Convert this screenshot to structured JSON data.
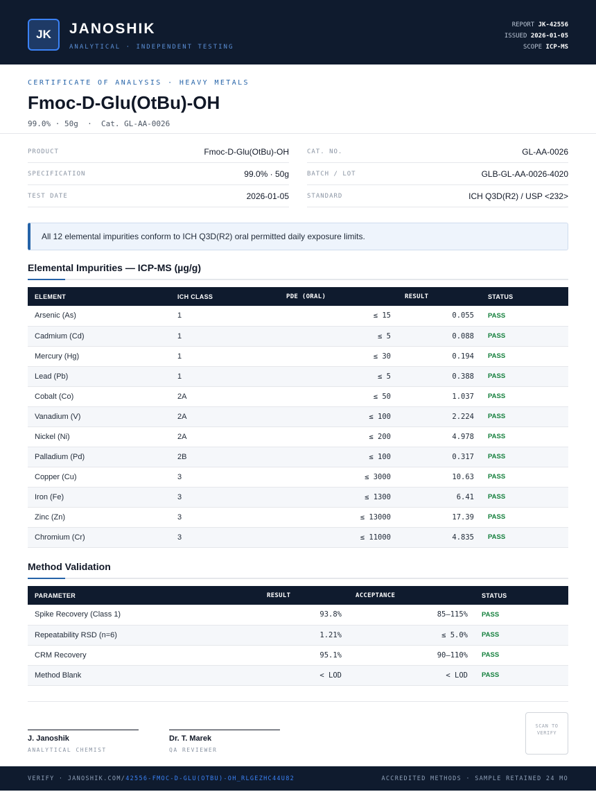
{
  "header": {
    "initials": "JK",
    "brand": "JANOSHIK",
    "tagline": "ANALYTICAL · INDEPENDENT TESTING",
    "meta": [
      {
        "label": "REPORT",
        "value": "JK-42556"
      },
      {
        "label": "ISSUED",
        "value": "2026-01-05"
      },
      {
        "label": "SCOPE",
        "value": "ICP-MS"
      }
    ]
  },
  "title_block": {
    "kicker": "CERTIFICATE OF ANALYSIS · HEAVY METALS",
    "title": "Fmoc-D-Glu(OtBu)-OH",
    "subtitle": "99.0% · 50g  ·  Cat. GL-AA-0026"
  },
  "info": {
    "left": [
      {
        "label": "PRODUCT",
        "value": "Fmoc-D-Glu(OtBu)-OH"
      },
      {
        "label": "SPECIFICATION",
        "value": "99.0% · 50g"
      },
      {
        "label": "TEST DATE",
        "value": "2026-01-05"
      }
    ],
    "right": [
      {
        "label": "CAT. NO.",
        "value": "GL-AA-0026"
      },
      {
        "label": "BATCH / LOT",
        "value": "GLB-GL-AA-0026-4020"
      },
      {
        "label": "STANDARD",
        "value": "ICH Q3D(R2) / USP <232>"
      }
    ]
  },
  "notice": "All 12 elemental impurities conform to ICH Q3D(R2) oral permitted daily exposure limits.",
  "impurities": {
    "heading": "Elemental Impurities — ICP-MS (µg/g)",
    "columns": [
      "ELEMENT",
      "ICH CLASS",
      "PDE (ORAL)",
      "RESULT",
      "STATUS"
    ],
    "rows": [
      [
        "Arsenic (As)",
        "1",
        "≤ 15",
        "0.055",
        "PASS"
      ],
      [
        "Cadmium (Cd)",
        "1",
        "≤ 5",
        "0.088",
        "PASS"
      ],
      [
        "Mercury (Hg)",
        "1",
        "≤ 30",
        "0.194",
        "PASS"
      ],
      [
        "Lead (Pb)",
        "1",
        "≤ 5",
        "0.388",
        "PASS"
      ],
      [
        "Cobalt (Co)",
        "2A",
        "≤ 50",
        "1.037",
        "PASS"
      ],
      [
        "Vanadium (V)",
        "2A",
        "≤ 100",
        "2.224",
        "PASS"
      ],
      [
        "Nickel (Ni)",
        "2A",
        "≤ 200",
        "4.978",
        "PASS"
      ],
      [
        "Palladium (Pd)",
        "2B",
        "≤ 100",
        "0.317",
        "PASS"
      ],
      [
        "Copper (Cu)",
        "3",
        "≤ 3000",
        "10.63",
        "PASS"
      ],
      [
        "Iron (Fe)",
        "3",
        "≤ 1300",
        "6.41",
        "PASS"
      ],
      [
        "Zinc (Zn)",
        "3",
        "≤ 13000",
        "17.39",
        "PASS"
      ],
      [
        "Chromium (Cr)",
        "3",
        "≤ 11000",
        "4.835",
        "PASS"
      ]
    ]
  },
  "validation": {
    "heading": "Method Validation",
    "columns": [
      "PARAMETER",
      "RESULT",
      "ACCEPTANCE",
      "STATUS"
    ],
    "rows": [
      [
        "Spike Recovery (Class 1)",
        "93.8%",
        "85–115%",
        "PASS"
      ],
      [
        "Repeatability RSD (n=6)",
        "1.21%",
        "≤ 5.0%",
        "PASS"
      ],
      [
        "CRM Recovery",
        "95.1%",
        "90–110%",
        "PASS"
      ],
      [
        "Method Blank",
        "< LOD",
        "< LOD",
        "PASS"
      ]
    ]
  },
  "signatures": [
    {
      "name": "J. Janoshik",
      "role": "ANALYTICAL CHEMIST"
    },
    {
      "name": "Dr. T. Marek",
      "role": "QA REVIEWER"
    }
  ],
  "stamp": "SCAN TO VERIFY",
  "footer": {
    "verify": "VERIFY · JANOSHIK.COM/",
    "link": "42556-FMOC-D-GLU(OTBU)-OH_RLGEZHC44U82",
    "right": "ACCREDITED METHODS · SAMPLE RETAINED 24 MO"
  }
}
